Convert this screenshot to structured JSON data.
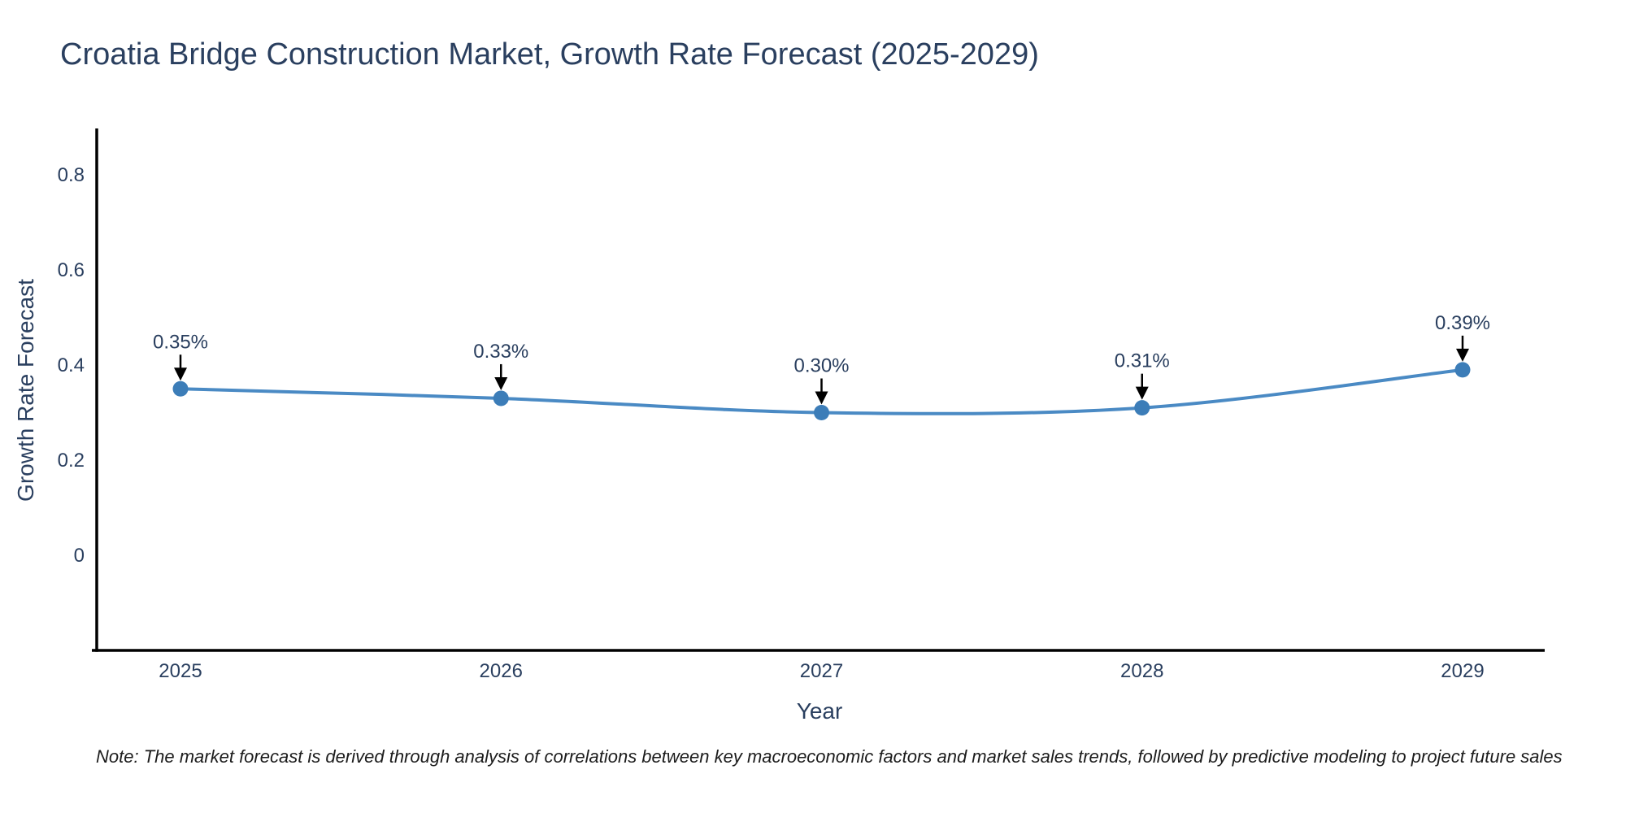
{
  "note": "Note: The market forecast is derived through analysis of correlations between key macroeconomic factors and market sales trends, followed by predictive modeling to project future sales",
  "chart_data": {
    "type": "line",
    "title": "Croatia Bridge Construction Market, Growth Rate Forecast (2025-2029)",
    "xlabel": "Year",
    "ylabel": "Growth Rate Forecast",
    "categories": [
      "2025",
      "2026",
      "2027",
      "2028",
      "2029"
    ],
    "values": [
      0.35,
      0.33,
      0.3,
      0.31,
      0.39
    ],
    "point_labels": [
      "0.35%",
      "0.33%",
      "0.30%",
      "0.31%",
      "0.39%"
    ],
    "y_ticks": [
      "0",
      "0.2",
      "0.4",
      "0.6",
      "0.8"
    ],
    "ylim": [
      -0.2,
      0.9
    ],
    "grid": false,
    "legend_position": "none",
    "line_shape": "spline",
    "colors": {
      "line": "#4a8ac4",
      "marker": "#3c7db8",
      "axis": "#000000",
      "text": "#2a3f5f",
      "annotation_text": "#2a3f5f",
      "annotation_arrow": "#000000",
      "background": "#ffffff"
    }
  }
}
